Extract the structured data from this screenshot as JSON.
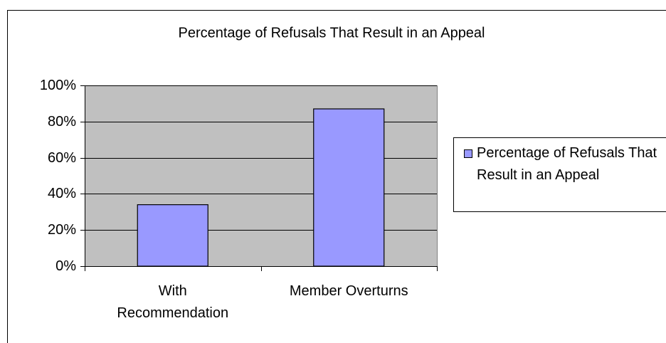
{
  "chart_data": {
    "type": "bar",
    "title": "Percentage of Refusals That Result in an Appeal",
    "categories": [
      "With Recommendation",
      "Member Overturns"
    ],
    "series": [
      {
        "name": "Percentage of Refusals That Result in an Appeal",
        "color": "#9999ff",
        "values": [
          34,
          87
        ]
      }
    ],
    "ylim": [
      0,
      100
    ],
    "yticks": [
      {
        "value": 0,
        "label": "0%"
      },
      {
        "value": 20,
        "label": "20%"
      },
      {
        "value": 40,
        "label": "40%"
      },
      {
        "value": 60,
        "label": "60%"
      },
      {
        "value": 80,
        "label": "80%"
      },
      {
        "value": 100,
        "label": "100%"
      }
    ],
    "grid": true,
    "legend": "right",
    "plot_background": "#c0c0c0"
  }
}
